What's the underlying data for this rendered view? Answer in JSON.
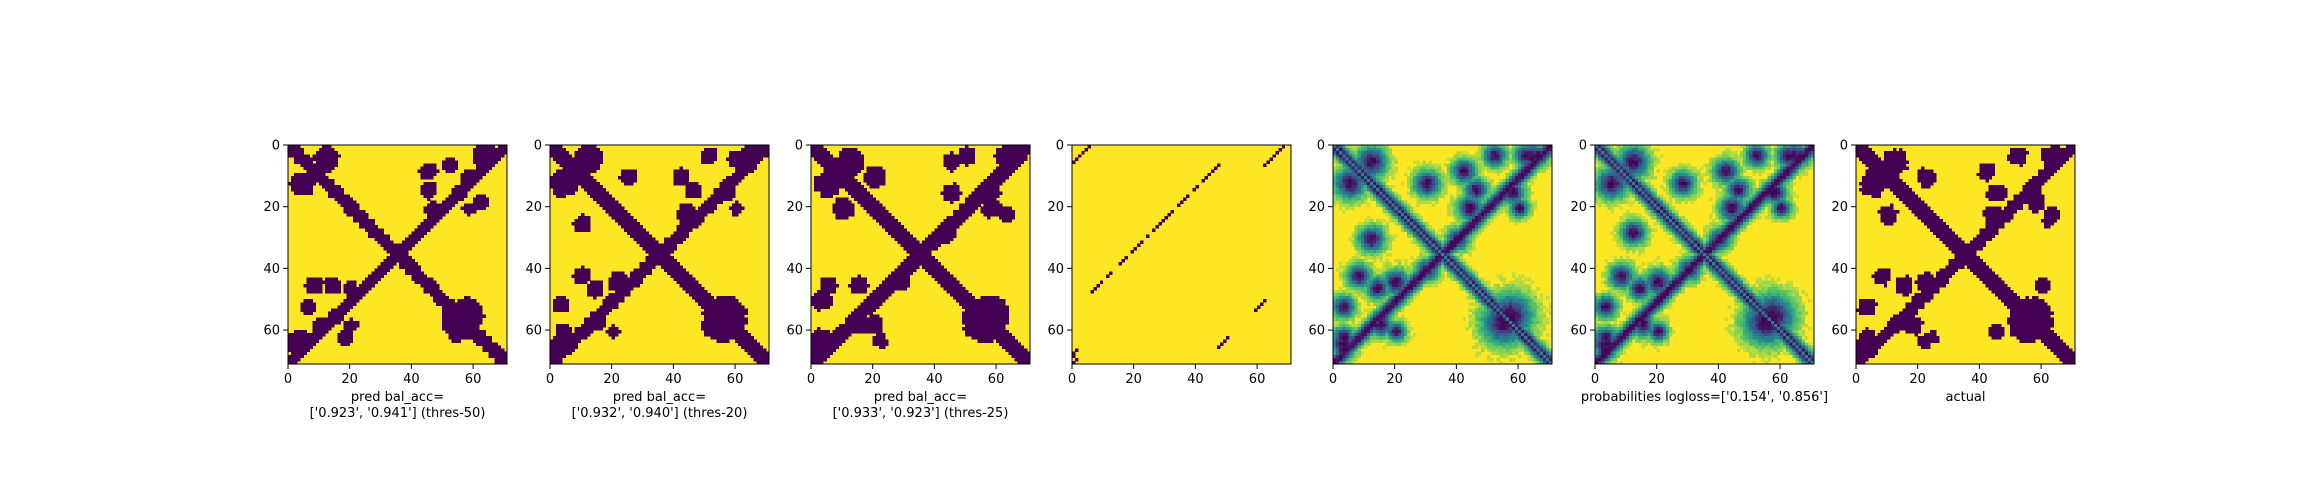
{
  "chart_data": {
    "type": "heatmap",
    "colormap": "viridis",
    "colors": {
      "low": "#440154",
      "mid": "#21908d",
      "high": "#fde725"
    },
    "panel_size": [
      71,
      71
    ],
    "panels": [
      {
        "kind": "binary_contact_map",
        "caption_lines": [
          "pred bal_acc=",
          "['0.923', '0.941'] (thres-50)"
        ],
        "xticks": [
          0,
          20,
          40,
          60
        ],
        "yticks": [
          0,
          20,
          40,
          60
        ],
        "xlim": [
          0,
          71
        ],
        "ylim": [
          71,
          0
        ],
        "features": {
          "diagonal_band_width": 3.3,
          "anti_diagonal_band_width": 3.0,
          "blobs": [
            [
              4,
              12,
              3.5
            ],
            [
              6,
              52,
              2.2
            ],
            [
              3,
              63,
              3.0
            ],
            [
              14,
              45,
              2.4
            ],
            [
              15,
              55,
              2.2
            ],
            [
              18,
              62,
              2.2
            ],
            [
              20,
              58,
              1.8
            ],
            [
              45,
              8,
              2.5
            ],
            [
              46,
              20,
              2.0
            ],
            [
              55,
              57,
              5.0
            ],
            [
              58,
              10,
              2.2
            ],
            [
              62,
              4,
              2.2
            ],
            [
              65,
              2,
              2.0
            ]
          ],
          "seed": 7
        }
      },
      {
        "kind": "binary_contact_map",
        "caption_lines": [
          "pred bal_acc=",
          "['0.932', '0.940'] (thres-20)"
        ],
        "xticks": [
          0,
          20,
          40,
          60
        ],
        "yticks": [
          0,
          20,
          40,
          60
        ],
        "xlim": [
          0,
          71
        ],
        "ylim": [
          71,
          0
        ],
        "features": {
          "diagonal_band_width": 3.6,
          "anti_diagonal_band_width": 3.3,
          "blobs": [
            [
              4,
              12,
              3.8
            ],
            [
              3,
              51,
              2.4
            ],
            [
              3,
              64,
              3.0
            ],
            [
              10,
              25,
              2.5
            ],
            [
              14,
              46,
              2.5
            ],
            [
              15,
              57,
              2.0
            ],
            [
              20,
              60,
              1.8
            ],
            [
              42,
              10,
              2.5
            ],
            [
              44,
              22,
              3.0
            ],
            [
              55,
              57,
              5.4
            ],
            [
              57,
              15,
              2.0
            ],
            [
              60,
              4,
              2.4
            ],
            [
              66,
              2,
              2.0
            ]
          ],
          "seed": 11
        }
      },
      {
        "kind": "binary_contact_map",
        "caption_lines": [
          "pred bal_acc=",
          "['0.933', '0.923'] (thres-25)"
        ],
        "xticks": [
          0,
          20,
          40,
          60
        ],
        "yticks": [
          0,
          20,
          40,
          60
        ],
        "xlim": [
          0,
          71
        ],
        "ylim": [
          71,
          0
        ],
        "features": {
          "diagonal_band_width": 3.8,
          "anti_diagonal_band_width": 3.5,
          "blobs": [
            [
              5,
              12,
              3.8
            ],
            [
              10,
              20,
              3.0
            ],
            [
              3,
              50,
              2.6
            ],
            [
              3,
              64,
              3.3
            ],
            [
              15,
              45,
              2.6
            ],
            [
              15,
              58,
              2.4
            ],
            [
              22,
              63,
              2.0
            ],
            [
              45,
              5,
              2.5
            ],
            [
              45,
              15,
              2.6
            ],
            [
              43,
              28,
              3.0
            ],
            [
              55,
              57,
              5.6
            ],
            [
              58,
              20,
              2.6
            ],
            [
              62,
              3,
              2.6
            ],
            [
              66,
              3,
              2.2
            ]
          ],
          "seed": 13
        }
      },
      {
        "kind": "sparse_dots",
        "caption_lines": [],
        "xticks": [
          0,
          20,
          40,
          60
        ],
        "yticks": [
          0,
          20,
          40,
          60
        ],
        "xlim": [
          0,
          71
        ],
        "ylim": [
          71,
          0
        ],
        "features": {
          "dots": [
            [
              6,
              47
            ],
            [
              7,
              46
            ],
            [
              8,
              45
            ],
            [
              9,
              44
            ],
            [
              10,
              43
            ],
            [
              11,
              42
            ],
            [
              13,
              40
            ],
            [
              14,
              39
            ],
            [
              16,
              37
            ],
            [
              17,
              36
            ],
            [
              18,
              35
            ],
            [
              19,
              34
            ],
            [
              21,
              32
            ],
            [
              22,
              31
            ],
            [
              23,
              30
            ],
            [
              24,
              29
            ],
            [
              25,
              28
            ],
            [
              26,
              27
            ],
            [
              27,
              26
            ],
            [
              29,
              24
            ],
            [
              31,
              22
            ],
            [
              32,
              21
            ],
            [
              33,
              20
            ],
            [
              34,
              19
            ],
            [
              36,
              17
            ],
            [
              37,
              16
            ],
            [
              38,
              15
            ],
            [
              41,
              12
            ],
            [
              42,
              11
            ],
            [
              44,
              9
            ],
            [
              45,
              8
            ],
            [
              46,
              7
            ],
            [
              47,
              6
            ],
            [
              3,
              2
            ],
            [
              4,
              1
            ],
            [
              5,
              0
            ],
            [
              2,
              3
            ],
            [
              1,
              4
            ],
            [
              0,
              5
            ],
            [
              66,
              1
            ],
            [
              67,
              0
            ],
            [
              68,
              0
            ],
            [
              0,
              68
            ],
            [
              1,
              67
            ],
            [
              2,
              66
            ],
            [
              3,
              65
            ],
            [
              4,
              64
            ],
            [
              5,
              63
            ],
            [
              6,
              62
            ],
            [
              50,
              62
            ],
            [
              51,
              61
            ],
            [
              52,
              60
            ],
            [
              53,
              59
            ],
            [
              62,
              50
            ],
            [
              63,
              49
            ],
            [
              64,
              48
            ],
            [
              65,
              47
            ],
            [
              70,
              0
            ],
            [
              69,
              1
            ]
          ],
          "seed": 17
        }
      },
      {
        "kind": "probability_map",
        "caption_lines": [],
        "xticks": [
          0,
          20,
          40,
          60
        ],
        "yticks": [
          0,
          20,
          40,
          60
        ],
        "xlim": [
          0,
          71
        ],
        "ylim": [
          71,
          0
        ],
        "features": {
          "diagonal_band_width": 3.0,
          "anti_diagonal_band_width": 3.0,
          "blobs": [
            [
              5,
              12,
              3.6
            ],
            [
              3,
              52,
              2.6
            ],
            [
              3,
              64,
              3.0
            ],
            [
              12,
              30,
              3.0
            ],
            [
              14,
              46,
              2.6
            ],
            [
              15,
              57,
              2.4
            ],
            [
              20,
              60,
              2.2
            ],
            [
              42,
              8,
              2.8
            ],
            [
              44,
              20,
              3.0
            ],
            [
              40,
              30,
              2.6
            ],
            [
              55,
              57,
              5.2
            ],
            [
              58,
              15,
              2.6
            ],
            [
              62,
              3,
              2.6
            ],
            [
              66,
              3,
              2.4
            ]
          ],
          "seed": 19
        }
      },
      {
        "kind": "probability_map",
        "caption_lines": [
          "probabilities logloss=['0.154', '0.856']"
        ],
        "xticks": [
          0,
          20,
          40,
          60
        ],
        "yticks": [
          0,
          20,
          40,
          60
        ],
        "xlim": [
          0,
          71
        ],
        "ylim": [
          71,
          0
        ],
        "features": {
          "diagonal_band_width": 3.0,
          "anti_diagonal_band_width": 3.0,
          "blobs": [
            [
              5,
              12,
              3.6
            ],
            [
              3,
              52,
              2.6
            ],
            [
              3,
              64,
              3.0
            ],
            [
              12,
              28,
              2.8
            ],
            [
              14,
              46,
              2.6
            ],
            [
              15,
              57,
              2.4
            ],
            [
              20,
              60,
              2.2
            ],
            [
              42,
              8,
              2.8
            ],
            [
              44,
              20,
              3.0
            ],
            [
              40,
              30,
              2.6
            ],
            [
              55,
              57,
              5.2
            ],
            [
              58,
              15,
              2.6
            ],
            [
              62,
              3,
              2.6
            ],
            [
              66,
              3,
              2.4
            ]
          ],
          "seed": 23
        }
      },
      {
        "kind": "binary_contact_map",
        "caption_lines": [
          "actual"
        ],
        "xticks": [
          0,
          20,
          40,
          60
        ],
        "yticks": [
          0,
          20,
          40,
          60
        ],
        "xlim": [
          0,
          71
        ],
        "ylim": [
          71,
          0
        ],
        "features": {
          "diagonal_band_width": 3.6,
          "anti_diagonal_band_width": 3.2,
          "blobs": [
            [
              5,
              12,
              3.6
            ],
            [
              10,
              22,
              2.6
            ],
            [
              3,
              52,
              2.6
            ],
            [
              3,
              64,
              3.0
            ],
            [
              15,
              45,
              2.6
            ],
            [
              15,
              57,
              2.2
            ],
            [
              22,
              63,
              2.0
            ],
            [
              24,
              62,
              1.8
            ],
            [
              42,
              8,
              2.5
            ],
            [
              44,
              22,
              2.6
            ],
            [
              45,
              60,
              2.2
            ],
            [
              55,
              57,
              5.4
            ],
            [
              58,
              18,
              2.6
            ],
            [
              62,
              3,
              2.4
            ],
            [
              66,
              3,
              2.2
            ]
          ],
          "seed": 29
        }
      }
    ]
  }
}
